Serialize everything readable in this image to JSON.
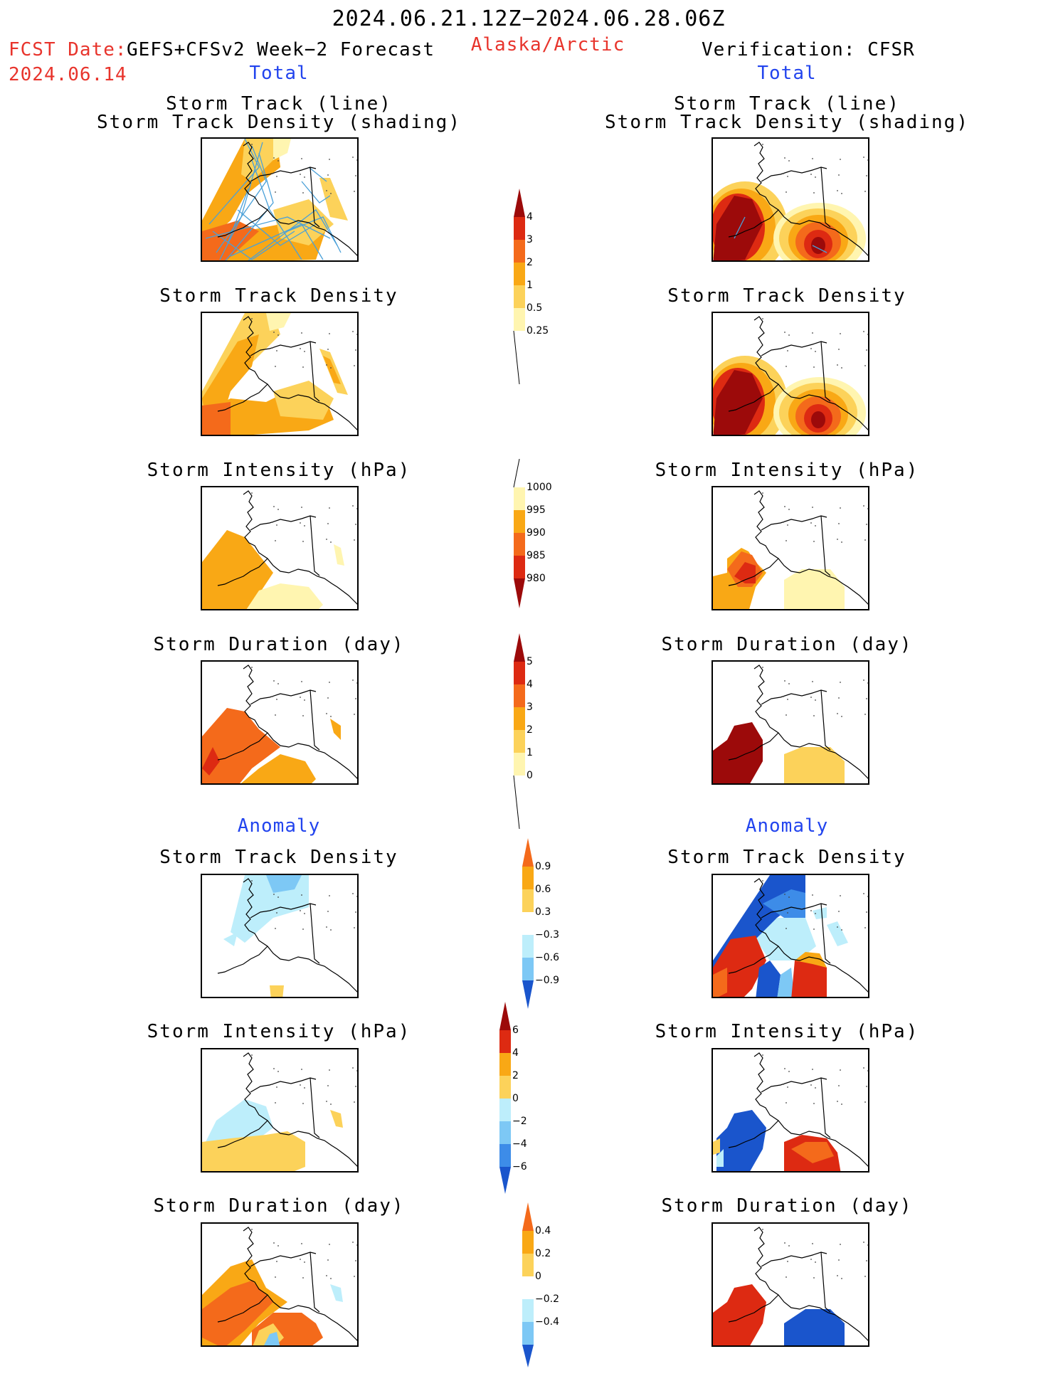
{
  "header": {
    "date_range": "2024.06.21.12Z−2024.06.28.06Z",
    "fcst_label": "FCST Date:",
    "fcst_model": "GEFS+CFSv2 Week−2 Forecast",
    "fcst_date": "2024.06.14",
    "region": "Alaska/Arctic",
    "verification": "Verification: CFSR"
  },
  "columns": {
    "left_total": "Total",
    "right_total": "Total",
    "left_anomaly": "Anomaly",
    "right_anomaly": "Anomaly"
  },
  "panels": {
    "track_line_1": "Storm Track (line)",
    "track_line_2": "Storm Track Density (shading)",
    "track_density": "Storm Track Density",
    "intensity": "Storm Intensity (hPa)",
    "duration": "Storm Duration (day)"
  },
  "colorbars": {
    "track_density": [
      "4",
      "3",
      "2",
      "1",
      "0.5",
      "0.25"
    ],
    "intensity": [
      "1000",
      "995",
      "990",
      "985",
      "980"
    ],
    "duration": [
      "5",
      "4",
      "3",
      "2",
      "1",
      "0"
    ],
    "anom_density": [
      "0.9",
      "0.6",
      "0.3",
      "−0.3",
      "−0.6",
      "−0.9"
    ],
    "anom_intensity": [
      "6",
      "4",
      "2",
      "0",
      "−2",
      "−4",
      "−6"
    ],
    "anom_duration": [
      "0.4",
      "0.2",
      "0",
      "−0.2",
      "−0.4"
    ]
  },
  "colors": {
    "pos_scale": [
      "#fff5b0",
      "#fcd25a",
      "#f9a815",
      "#f46a1b",
      "#dd2a12",
      "#9c0a0a"
    ],
    "neg_scale": [
      "#bdeefb",
      "#7dc8f5",
      "#3d8ce8",
      "#1a55cc"
    ],
    "title_red": "#e8342c",
    "title_blue": "#2244ee"
  }
}
